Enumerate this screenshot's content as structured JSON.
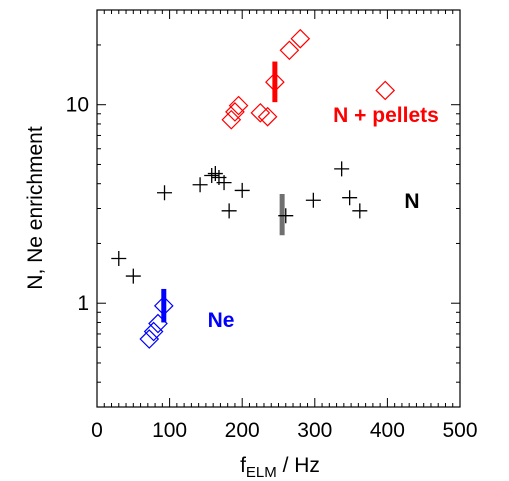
{
  "chart_data": {
    "type": "scatter",
    "xlabel": {
      "base": "f",
      "sub": "ELM",
      "rest": " / Hz"
    },
    "ylabel": "N, Ne enrichment",
    "xlim": [
      0,
      500
    ],
    "ylim": [
      0.3,
      30
    ],
    "yscale": "log",
    "grid": false,
    "x_ticks": [
      0,
      100,
      200,
      300,
      400,
      500
    ],
    "x_tick_labels": [
      "0",
      "100",
      "200",
      "300",
      "400",
      "500"
    ],
    "y_ticks": [
      1,
      10
    ],
    "y_tick_labels": [
      "1",
      "10"
    ],
    "series": [
      {
        "name": "N",
        "color": "#000000",
        "marker": "plus",
        "points": [
          [
            30,
            1.68
          ],
          [
            50,
            1.37
          ],
          [
            93,
            3.6
          ],
          [
            142,
            3.95
          ],
          [
            158,
            4.4
          ],
          [
            163,
            4.5
          ],
          [
            168,
            4.3
          ],
          [
            175,
            4.05
          ],
          [
            182,
            2.92
          ],
          [
            200,
            3.7
          ],
          [
            260,
            2.76
          ],
          [
            298,
            3.3
          ],
          [
            337,
            4.75
          ],
          [
            348,
            3.4
          ],
          [
            362,
            2.92
          ]
        ],
        "error_bar": {
          "x": 255,
          "low": 2.2,
          "high": 3.55,
          "color": "#707070"
        }
      },
      {
        "name": "N + pellets",
        "color": "#ff0000",
        "marker": "diamond",
        "points": [
          [
            185,
            8.4
          ],
          [
            190,
            9.2
          ],
          [
            195,
            9.9
          ],
          [
            225,
            9.1
          ],
          [
            235,
            8.7
          ],
          [
            245,
            13.0
          ],
          [
            265,
            18.8
          ],
          [
            280,
            21.5
          ],
          [
            397,
            11.8
          ]
        ],
        "error_bar": {
          "x": 245,
          "low": 10.3,
          "high": 16.5,
          "color": "#ff0000"
        }
      },
      {
        "name": "Ne",
        "color": "#0000ff",
        "marker": "diamond",
        "points": [
          [
            72,
            0.66
          ],
          [
            78,
            0.72
          ],
          [
            84,
            0.79
          ],
          [
            92,
            0.97
          ]
        ],
        "error_bar": {
          "x": 92,
          "low": 0.8,
          "high": 1.18,
          "color": "#0000ff"
        }
      }
    ]
  }
}
